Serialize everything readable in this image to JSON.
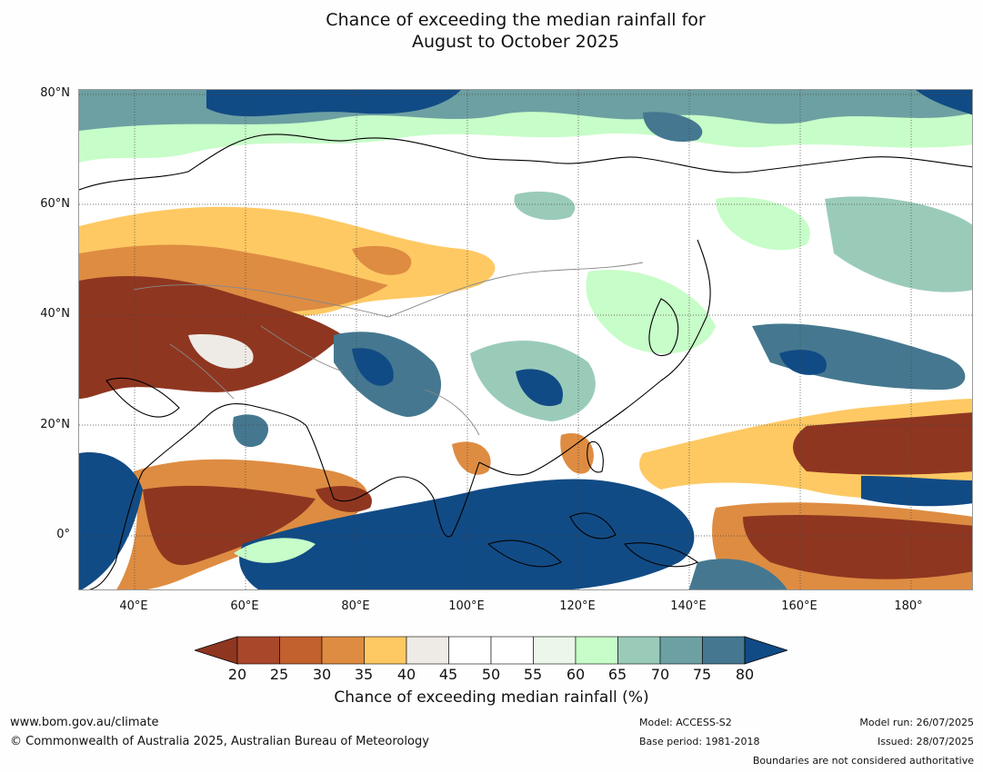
{
  "title": {
    "line1": "Chance of exceeding the median rainfall for",
    "line2": "August to October 2025"
  },
  "map": {
    "lat_labels": [
      "80°N",
      "60°N",
      "40°N",
      "20°N",
      "0°"
    ],
    "lon_labels": [
      "40°E",
      "60°E",
      "80°E",
      "100°E",
      "120°E",
      "140°E",
      "160°E",
      "180°"
    ],
    "lon_range": [
      30,
      191
    ],
    "lat_range": [
      -10,
      80
    ]
  },
  "colorbar": {
    "ticks": [
      "20",
      "25",
      "30",
      "35",
      "40",
      "45",
      "50",
      "55",
      "60",
      "65",
      "70",
      "75",
      "80"
    ],
    "colors": {
      "under": "#8f3620",
      "c20": "#a8472a",
      "c25": "#c2602e",
      "c30": "#de8c42",
      "c35": "#fec963",
      "c40": "#eeebe6",
      "c45": "#ffffff",
      "c50": "#ffffff",
      "c55": "#ebf7e9",
      "c60": "#c7fdc8",
      "c65": "#9acbb9",
      "c70": "#6da0a2",
      "c75": "#457890",
      "over": "#114b85"
    },
    "label": "Chance of exceeding median rainfall (%)"
  },
  "footer": {
    "url": "www.bom.gov.au/climate",
    "copyright": "© Commonwealth of Australia 2025, Australian Bureau of Meteorology",
    "model": "Model: ACCESS-S2",
    "base_period": "Base period: 1981-2018",
    "model_run": "Model run: 26/07/2025",
    "issued": "Issued: 28/07/2025",
    "disclaimer": "Boundaries are not considered authoritative"
  }
}
